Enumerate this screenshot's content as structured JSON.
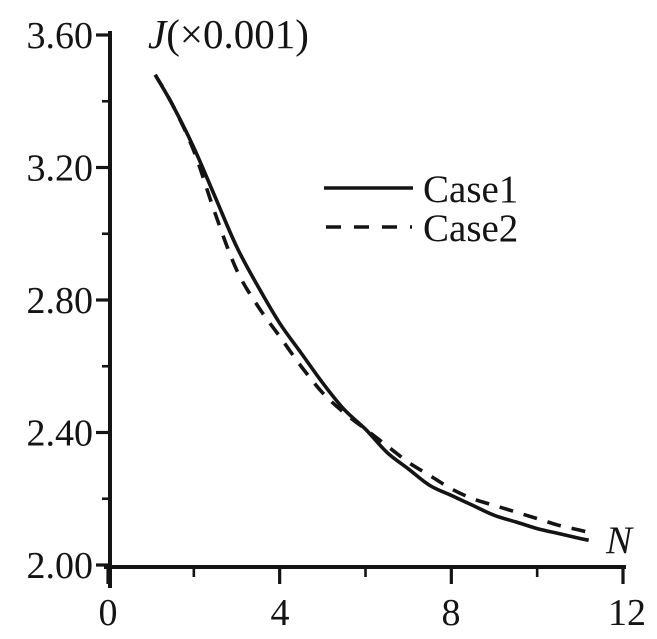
{
  "chart_data": {
    "type": "line",
    "title": "J(×0.001)",
    "title_parts": {
      "var": "J",
      "scale": "(×0.001)"
    },
    "xlabel": "N",
    "ylabel": "J (×0.001)",
    "xlim": [
      0,
      12
    ],
    "ylim": [
      2.0,
      3.6
    ],
    "grid": false,
    "legend_position": "upper-right-inside",
    "x_major_ticks": [
      0,
      4,
      8,
      12
    ],
    "x_minor_ticks": [
      2,
      6,
      10
    ],
    "x_tick_labels": [
      "0",
      "4",
      "8",
      "12"
    ],
    "y_major_ticks": [
      3.6,
      3.2,
      2.8,
      2.4,
      2.0
    ],
    "y_minor_ticks": [
      3.4,
      3.0,
      2.6,
      2.2
    ],
    "y_tick_labels": [
      "3.60",
      "3.20",
      "2.80",
      "2.40",
      "2.00"
    ],
    "legend": [
      {
        "label": "Case1",
        "style": "solid"
      },
      {
        "label": "Case2",
        "style": "dashed"
      }
    ],
    "series": [
      {
        "name": "Case1",
        "style": "solid",
        "points": [
          [
            1.1,
            3.48
          ],
          [
            1.5,
            3.39
          ],
          [
            2.0,
            3.26
          ],
          [
            2.5,
            3.11
          ],
          [
            3.0,
            2.96
          ],
          [
            3.5,
            2.84
          ],
          [
            4.0,
            2.73
          ],
          [
            4.5,
            2.64
          ],
          [
            5.0,
            2.55
          ],
          [
            5.5,
            2.47
          ],
          [
            6.0,
            2.41
          ],
          [
            6.5,
            2.34
          ],
          [
            7.0,
            2.29
          ],
          [
            7.5,
            2.24
          ],
          [
            8.0,
            2.21
          ],
          [
            8.5,
            2.18
          ],
          [
            9.0,
            2.15
          ],
          [
            9.5,
            2.13
          ],
          [
            10.0,
            2.11
          ],
          [
            10.5,
            2.095
          ],
          [
            11.0,
            2.08
          ],
          [
            11.2,
            2.075
          ]
        ]
      },
      {
        "name": "Case2",
        "style": "dashed",
        "points": [
          [
            1.1,
            3.48
          ],
          [
            1.5,
            3.39
          ],
          [
            2.0,
            3.25
          ],
          [
            2.5,
            3.06
          ],
          [
            3.0,
            2.89
          ],
          [
            3.5,
            2.78
          ],
          [
            4.0,
            2.69
          ],
          [
            4.5,
            2.6
          ],
          [
            5.0,
            2.52
          ],
          [
            5.5,
            2.46
          ],
          [
            6.0,
            2.41
          ],
          [
            6.5,
            2.36
          ],
          [
            7.0,
            2.31
          ],
          [
            7.5,
            2.27
          ],
          [
            8.0,
            2.23
          ],
          [
            8.5,
            2.2
          ],
          [
            9.0,
            2.18
          ],
          [
            9.5,
            2.16
          ],
          [
            10.0,
            2.14
          ],
          [
            10.5,
            2.12
          ],
          [
            11.0,
            2.105
          ],
          [
            11.3,
            2.095
          ]
        ]
      }
    ]
  }
}
